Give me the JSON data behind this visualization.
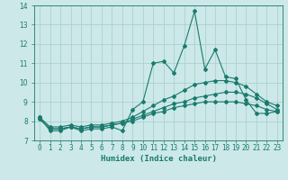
{
  "xlabel": "Humidex (Indice chaleur)",
  "ylabel": "",
  "x_values": [
    0,
    1,
    2,
    3,
    4,
    5,
    6,
    7,
    8,
    9,
    10,
    11,
    12,
    13,
    14,
    15,
    16,
    17,
    18,
    19,
    20,
    21,
    22,
    23
  ],
  "ylim": [
    7,
    14
  ],
  "xlim": [
    -0.5,
    23.5
  ],
  "bg_color": "#cce8e8",
  "grid_color": "#a8cccc",
  "line_color": "#1a7a6e",
  "lines": [
    [
      8.2,
      7.5,
      7.5,
      7.7,
      7.5,
      7.6,
      7.6,
      7.7,
      7.5,
      8.6,
      9.0,
      11.0,
      11.1,
      10.5,
      11.9,
      13.7,
      10.7,
      11.7,
      10.3,
      10.2,
      9.1,
      8.4,
      8.4,
      8.5
    ],
    [
      8.2,
      7.7,
      7.7,
      7.8,
      7.7,
      7.8,
      7.8,
      7.9,
      8.0,
      8.2,
      8.5,
      8.8,
      9.1,
      9.3,
      9.6,
      9.9,
      10.0,
      10.1,
      10.1,
      10.0,
      9.8,
      9.4,
      9.0,
      8.8
    ],
    [
      8.1,
      7.6,
      7.6,
      7.7,
      7.6,
      7.7,
      7.7,
      7.8,
      7.9,
      8.1,
      8.3,
      8.5,
      8.7,
      8.9,
      9.0,
      9.2,
      9.3,
      9.4,
      9.5,
      9.5,
      9.4,
      9.2,
      8.9,
      8.6
    ],
    [
      8.1,
      7.6,
      7.6,
      7.7,
      7.6,
      7.7,
      7.7,
      7.8,
      7.9,
      8.0,
      8.2,
      8.4,
      8.5,
      8.7,
      8.8,
      8.9,
      9.0,
      9.0,
      9.0,
      9.0,
      8.9,
      8.8,
      8.6,
      8.5
    ]
  ],
  "tick_fontsize": 5.5,
  "xlabel_fontsize": 6.5,
  "linewidth": 0.8,
  "markersize": 2.0
}
